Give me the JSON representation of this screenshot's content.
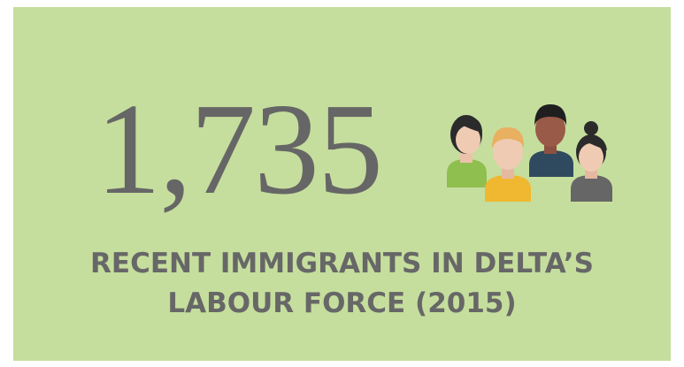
{
  "stat": "1,735",
  "caption": [
    "RECENT IMMIGRANTS IN DELTA’S",
    "LABOUR FORCE (2015)"
  ]
}
